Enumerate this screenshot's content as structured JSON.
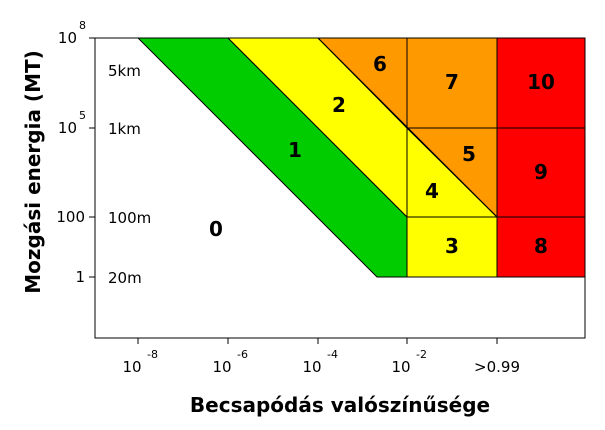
{
  "chart_data": {
    "type": "area",
    "title": "",
    "xlabel": "Becsapódás valószínűsége",
    "ylabel": "Mozgási energia (MT)",
    "colors": {
      "green": "#00cc00",
      "yellow": "#ffff00",
      "orange": "#ff9900",
      "red": "#ff0000",
      "white": "#ffffff"
    },
    "x_ticks": [
      {
        "base": "10",
        "exp": "-8"
      },
      {
        "base": "10",
        "exp": "-6"
      },
      {
        "base": "10",
        "exp": "-4"
      },
      {
        "base": "10",
        "exp": "-2"
      },
      {
        "base": ">0.99",
        "exp": ""
      }
    ],
    "y_ticks": [
      {
        "base": "10",
        "exp": "8"
      },
      {
        "base": "10",
        "exp": "5"
      },
      {
        "base": "100",
        "exp": ""
      },
      {
        "base": "1",
        "exp": ""
      }
    ],
    "size_labels": [
      "5km",
      "1km",
      "100m",
      "20m"
    ],
    "zones": [
      {
        "label": "0",
        "color": "white"
      },
      {
        "label": "1",
        "color": "green"
      },
      {
        "label": "2",
        "color": "yellow"
      },
      {
        "label": "3",
        "color": "yellow"
      },
      {
        "label": "4",
        "color": "yellow"
      },
      {
        "label": "5",
        "color": "orange"
      },
      {
        "label": "6",
        "color": "orange"
      },
      {
        "label": "7",
        "color": "orange"
      },
      {
        "label": "8",
        "color": "red"
      },
      {
        "label": "9",
        "color": "red"
      },
      {
        "label": "10",
        "color": "red"
      }
    ]
  }
}
